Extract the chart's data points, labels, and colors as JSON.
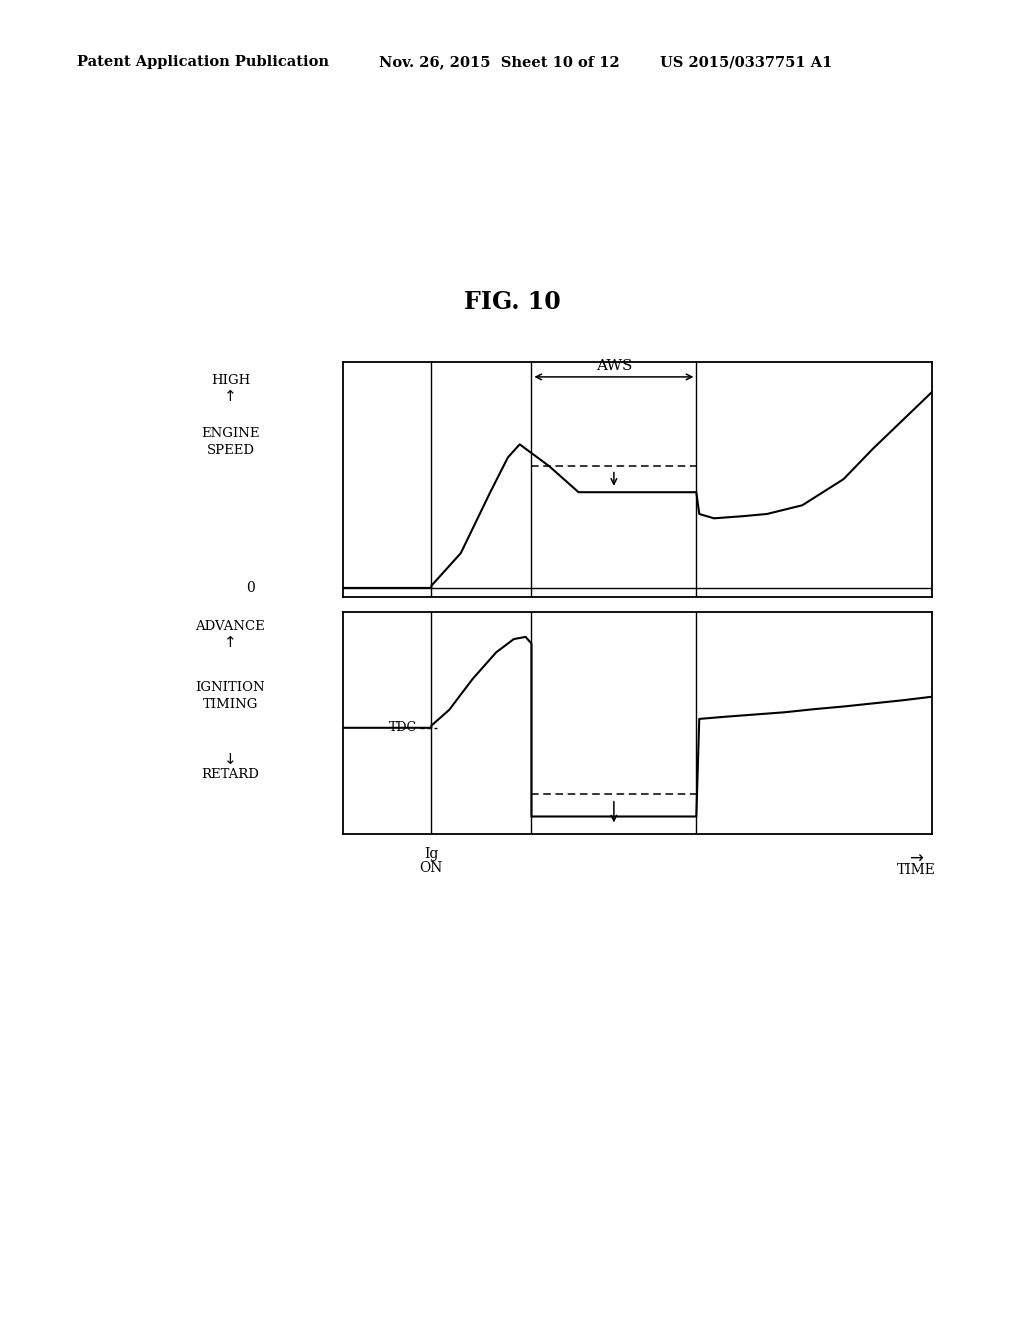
{
  "fig_title": "FIG. 10",
  "header_left": "Patent Application Publication",
  "header_center": "Nov. 26, 2015  Sheet 10 of 12",
  "header_right": "US 2015/0337751 A1",
  "background_color": "#ffffff",
  "line_color": "#000000",
  "top_panel": {
    "aws_label": "AWS",
    "engine_speed_x": [
      0.0,
      1.5,
      1.5,
      2.0,
      2.5,
      2.8,
      3.0,
      3.2,
      3.5,
      4.0,
      5.0,
      6.0,
      6.05,
      6.3,
      6.8,
      7.2,
      7.8,
      8.5,
      9.0,
      10.0
    ],
    "engine_speed_y": [
      0.0,
      0.0,
      0.05,
      0.8,
      2.2,
      3.0,
      3.3,
      3.1,
      2.8,
      2.2,
      2.2,
      2.2,
      1.7,
      1.6,
      1.65,
      1.7,
      1.9,
      2.5,
      3.2,
      4.5
    ],
    "dashed_y": 2.8,
    "flat_y": 2.2,
    "aws_x_start": 3.2,
    "aws_x_end": 6.0,
    "ig_on_x": 1.5,
    "ylim_min": -0.2,
    "ylim_max": 5.2
  },
  "bottom_panel": {
    "tdc_label": "TDC",
    "tdc_y": 0.4,
    "ignition_x": [
      0.0,
      1.5,
      1.5,
      1.8,
      2.2,
      2.6,
      2.9,
      3.1,
      3.2,
      3.2,
      3.5,
      4.0,
      5.0,
      6.0,
      6.0,
      6.05,
      6.5,
      7.0,
      7.5,
      8.0,
      8.5,
      9.0,
      9.5,
      10.0
    ],
    "ignition_y": [
      0.4,
      0.4,
      0.45,
      0.8,
      1.5,
      2.1,
      2.4,
      2.45,
      2.3,
      -1.6,
      -1.6,
      -1.6,
      -1.6,
      -1.6,
      -1.6,
      0.6,
      0.65,
      0.7,
      0.75,
      0.82,
      0.88,
      0.95,
      1.02,
      1.1
    ],
    "dashed_y": -1.1,
    "aws_x_start": 3.2,
    "aws_x_end": 6.0,
    "ig_on_x": 1.5,
    "ylim_min": -2.0,
    "ylim_max": 3.0
  },
  "x_min": 0.0,
  "x_max": 10.0,
  "ig_on_x": 1.5,
  "aws_x_start": 3.2,
  "aws_x_end": 6.0
}
